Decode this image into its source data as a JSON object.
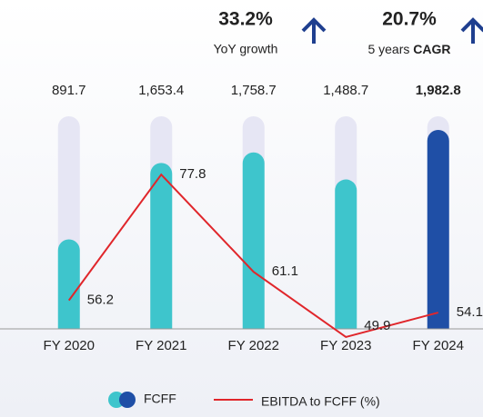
{
  "chart_data": {
    "type": "bar_line",
    "annotations": [
      {
        "headline": "33.2%",
        "caption": "YoY growth"
      },
      {
        "headline": "20.7%",
        "caption": "5 years",
        "caption_bold": "CAGR"
      }
    ],
    "categories": [
      "FY 2020",
      "FY 2021",
      "FY 2022",
      "FY 2023",
      "FY 2024"
    ],
    "series": [
      {
        "name": "FCFF",
        "type": "bar",
        "color": "#3ec5cc",
        "colors": [
          "#3ec5cc",
          "#3ec5cc",
          "#3ec5cc",
          "#3ec5cc",
          "#1f4fa6"
        ],
        "values": [
          891.7,
          1653.4,
          1758.7,
          1488.7,
          1982.8
        ],
        "value_labels": [
          "891.7",
          "1,653.4",
          "1,758.7",
          "1,488.7",
          "1,982.8"
        ]
      },
      {
        "name": "EBITDA to FCFF (%)",
        "type": "line",
        "axis": "y2",
        "color": "#e0262b",
        "values": [
          56.2,
          77.8,
          61.1,
          49.9,
          54.1
        ]
      }
    ],
    "ylim": [
      0,
      2100
    ],
    "y2lim": [
      51.3,
      87.5
    ]
  }
}
